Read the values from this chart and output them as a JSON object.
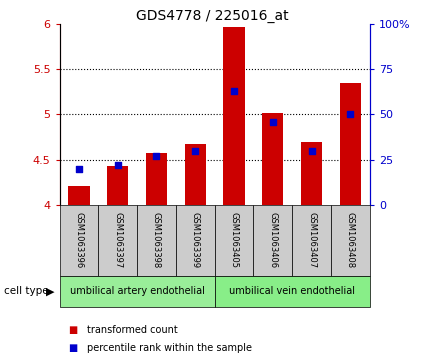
{
  "title": "GDS4778 / 225016_at",
  "samples": [
    "GSM1063396",
    "GSM1063397",
    "GSM1063398",
    "GSM1063399",
    "GSM1063405",
    "GSM1063406",
    "GSM1063407",
    "GSM1063408"
  ],
  "transformed_counts": [
    4.21,
    4.43,
    4.57,
    4.67,
    5.96,
    5.02,
    4.7,
    5.34
  ],
  "percentile_ranks": [
    20,
    22,
    27,
    30,
    63,
    46,
    30,
    50
  ],
  "ylim_left": [
    4.0,
    6.0
  ],
  "ylim_right": [
    0,
    100
  ],
  "yticks_left": [
    4.0,
    4.5,
    5.0,
    5.5,
    6.0
  ],
  "yticks_right": [
    0,
    25,
    50,
    75,
    100
  ],
  "ytick_labels_left": [
    "4",
    "4.5",
    "5",
    "5.5",
    "6"
  ],
  "ytick_labels_right": [
    "0",
    "25",
    "50",
    "75",
    "100%"
  ],
  "bar_color": "#cc0000",
  "dot_color": "#0000cc",
  "grid_color": "#000000",
  "cell_types": [
    "umbilical artery endothelial",
    "umbilical vein endothelial"
  ],
  "cell_type_colors": [
    "#99ee99",
    "#88ee88"
  ],
  "legend_items": [
    "transformed count",
    "percentile rank within the sample"
  ],
  "legend_colors": [
    "#cc0000",
    "#0000cc"
  ],
  "bar_width": 0.55,
  "baseline": 4.0,
  "left_axis_color": "#cc0000",
  "right_axis_color": "#0000cc",
  "sample_box_color": "#cccccc",
  "fig_bg": "#ffffff"
}
